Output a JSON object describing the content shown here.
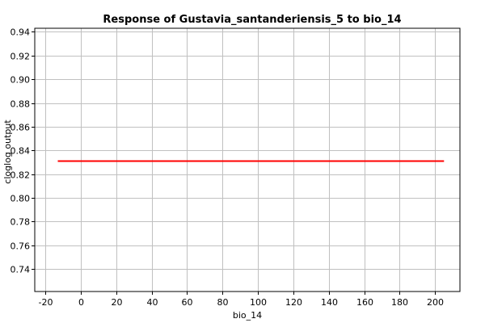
{
  "chart_data": {
    "type": "line",
    "title": "Response of Gustavia_santanderiensis_5 to bio_14",
    "xlabel": "bio_14",
    "ylabel": "cloglog output",
    "xlim": [
      -26,
      214
    ],
    "ylim": [
      0.721,
      0.943
    ],
    "xticks": [
      -20,
      0,
      20,
      40,
      60,
      80,
      100,
      120,
      140,
      160,
      180,
      200
    ],
    "yticks": [
      0.74,
      0.76,
      0.78,
      0.8,
      0.82,
      0.84,
      0.86,
      0.88,
      0.9,
      0.92,
      0.94
    ],
    "xtick_labels": [
      "-20",
      "0",
      "20",
      "40",
      "60",
      "80",
      "100",
      "120",
      "140",
      "160",
      "180",
      "200"
    ],
    "ytick_labels": [
      "0.74",
      "0.76",
      "0.78",
      "0.80",
      "0.82",
      "0.84",
      "0.86",
      "0.88",
      "0.90",
      "0.92",
      "0.94"
    ],
    "grid": true,
    "series": [
      {
        "color": "#ff0000",
        "x": [
          -13,
          205
        ],
        "y": [
          0.831,
          0.831
        ]
      }
    ]
  }
}
